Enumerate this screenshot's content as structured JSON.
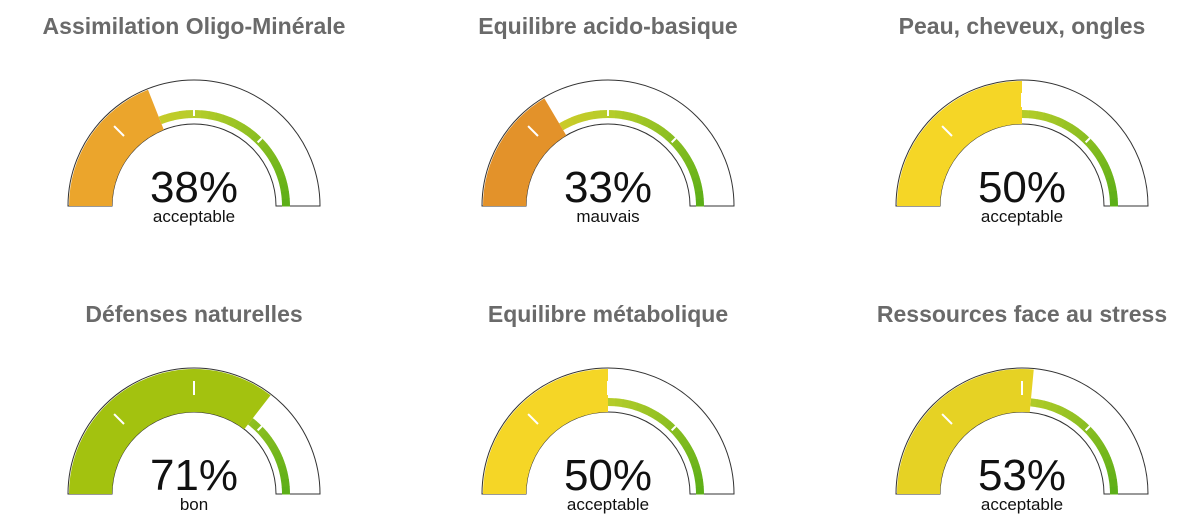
{
  "colors": {
    "track_outline": "#333333",
    "track_fill": "#ffffff",
    "mauvais": "#e3922a",
    "acceptable_low": "#eba52c",
    "acceptable_mid": "#f5d626",
    "acceptable_high": "#e6d224",
    "bon": "#a3c20f",
    "scale_start": "#f2c41f",
    "scale_mid": "#b6cd2b",
    "scale_end": "#5aae16",
    "tick": "#ffffff",
    "title": "#6a6a6a",
    "text": "#111111"
  },
  "chart_data": [
    {
      "type": "gauge",
      "title": "Assimilation Oligo-Minérale",
      "value": 38,
      "value_label": "38%",
      "status": "acceptable",
      "range": [
        0,
        100
      ],
      "fill_color": "#eba52c"
    },
    {
      "type": "gauge",
      "title": "Equilibre acido-basique",
      "value": 33,
      "value_label": "33%",
      "status": "mauvais",
      "range": [
        0,
        100
      ],
      "fill_color": "#e3922a"
    },
    {
      "type": "gauge",
      "title": "Peau, cheveux, ongles",
      "value": 50,
      "value_label": "50%",
      "status": "acceptable",
      "range": [
        0,
        100
      ],
      "fill_color": "#f5d626"
    },
    {
      "type": "gauge",
      "title": "Défenses naturelles",
      "value": 71,
      "value_label": "71%",
      "status": "bon",
      "range": [
        0,
        100
      ],
      "fill_color": "#a3c20f"
    },
    {
      "type": "gauge",
      "title": "Equilibre métabolique",
      "value": 50,
      "value_label": "50%",
      "status": "acceptable",
      "range": [
        0,
        100
      ],
      "fill_color": "#f5d626"
    },
    {
      "type": "gauge",
      "title": "Ressources face au stress",
      "value": 53,
      "value_label": "53%",
      "status": "acceptable",
      "range": [
        0,
        100
      ],
      "fill_color": "#e6d224"
    }
  ]
}
